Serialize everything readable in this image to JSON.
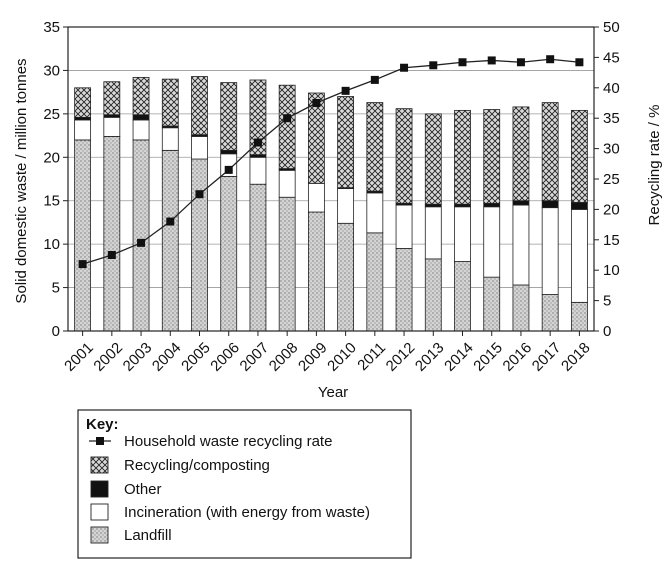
{
  "chart_data": {
    "type": "bar",
    "stacked": true,
    "categories": [
      "2001",
      "2002",
      "2003",
      "2004",
      "2005",
      "2006",
      "2007",
      "2008",
      "2009",
      "2010",
      "2011",
      "2012",
      "2013",
      "2014",
      "2015",
      "2016",
      "2017",
      "2018"
    ],
    "series": [
      {
        "name": "Landfill",
        "pattern": "dotted-grey",
        "values": [
          22.0,
          22.4,
          22.0,
          20.8,
          19.8,
          17.8,
          16.9,
          15.4,
          13.7,
          12.4,
          11.3,
          9.5,
          8.3,
          8.0,
          6.2,
          5.3,
          4.2,
          3.3
        ]
      },
      {
        "name": "Incineration (with energy from waste)",
        "pattern": "white",
        "values": [
          2.3,
          2.2,
          2.3,
          2.6,
          2.6,
          2.6,
          3.1,
          3.1,
          3.3,
          4.0,
          4.6,
          5.0,
          6.0,
          6.3,
          8.1,
          9.2,
          10.0,
          10.7
        ]
      },
      {
        "name": "Other",
        "pattern": "black",
        "values": [
          0.3,
          0.3,
          0.6,
          0.2,
          0.2,
          0.4,
          0.3,
          0.2,
          0.0,
          0.1,
          0.2,
          0.2,
          0.3,
          0.3,
          0.4,
          0.5,
          0.8,
          0.8
        ]
      },
      {
        "name": "Recycling/composting",
        "pattern": "crosshatch",
        "values": [
          3.4,
          3.8,
          4.3,
          5.4,
          6.7,
          7.8,
          8.6,
          9.6,
          10.4,
          10.5,
          10.2,
          10.9,
          10.4,
          10.8,
          10.8,
          10.8,
          11.3,
          10.6
        ]
      }
    ],
    "line_series": {
      "name": "Household waste recycling rate",
      "axis": "right",
      "values": [
        11,
        12.5,
        14.5,
        18,
        22.5,
        26.5,
        31,
        35,
        37.5,
        39.5,
        41.3,
        43.3,
        43.7,
        44.2,
        44.5,
        44.2,
        44.7,
        44.2
      ]
    },
    "xlabel": "Year",
    "ylabel": "Solid domestic waste / million tonnes",
    "y2label": "Recycling rate / %",
    "ylim": [
      0,
      35
    ],
    "y2lim": [
      0,
      50
    ],
    "yticks": [
      0,
      5,
      10,
      15,
      20,
      25,
      30,
      35
    ],
    "y2ticks": [
      0,
      5,
      10,
      15,
      20,
      25,
      30,
      35,
      40,
      45,
      50
    ],
    "grid": "horizontal",
    "legend_position": "bottom-left",
    "legend_title": "Key:",
    "legend_order": [
      "Household waste recycling rate",
      "Recycling/composting",
      "Other",
      "Incineration (with energy from waste)",
      "Landfill"
    ],
    "colors": {
      "frame": "#222222",
      "landfill_fill": "#c8c8c8",
      "grid": "#9a9a9a"
    }
  }
}
